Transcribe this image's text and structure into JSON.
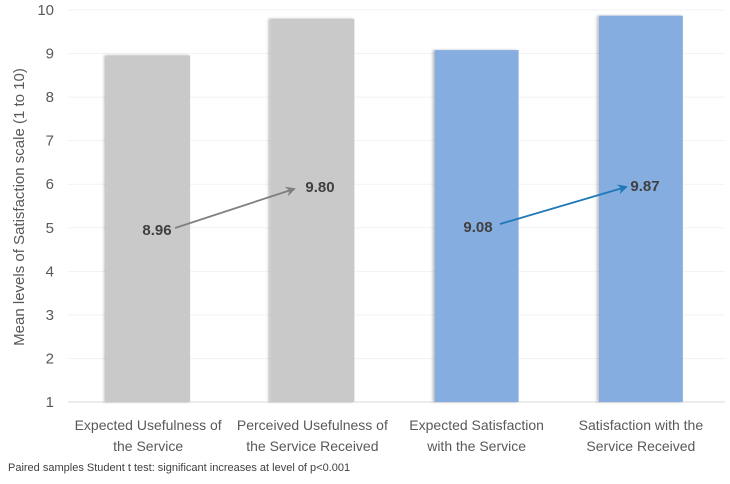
{
  "chart_data": {
    "type": "bar",
    "title": "",
    "xlabel": "",
    "ylabel": "Mean levels of Satisfaction scale (1 to 10)",
    "ylim": [
      1,
      10
    ],
    "yticks": [
      1,
      2,
      3,
      4,
      5,
      6,
      7,
      8,
      9,
      10
    ],
    "grid": true,
    "categories": [
      [
        "Expected Usefulness of",
        "the Service"
      ],
      [
        "Perceived Usefulness of",
        "the Service Received"
      ],
      [
        "Expected Satisfaction",
        "with the Service"
      ],
      [
        "Satisfaction with the",
        "Service Received"
      ]
    ],
    "values": [
      8.96,
      9.8,
      9.08,
      9.87
    ],
    "value_labels": [
      "8.96",
      "9.80",
      "9.08",
      "9.87"
    ],
    "bar_colors": [
      "#c9c9c9",
      "#c9c9c9",
      "#86ade0",
      "#86ade0"
    ],
    "arrows": [
      {
        "from": 0,
        "to": 1,
        "color": "#7f7f7f"
      },
      {
        "from": 2,
        "to": 3,
        "color": "#1f78b8"
      }
    ]
  },
  "footnote": "Paired samples Student t test: significant increases at level of p<0.001"
}
